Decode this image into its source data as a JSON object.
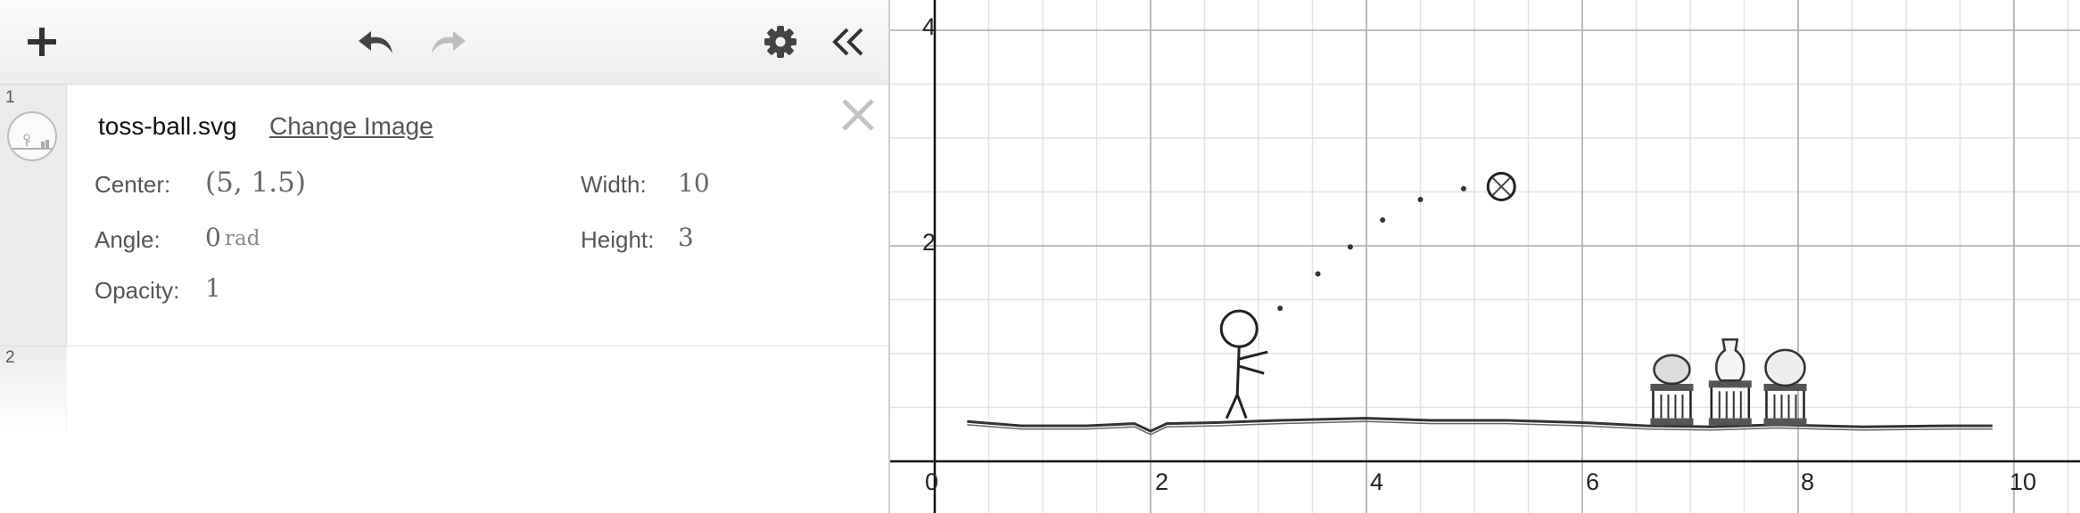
{
  "toolbar": {
    "add_icon": "plus-icon",
    "undo_icon": "undo-icon",
    "redo_icon": "redo-icon",
    "settings_icon": "gear-icon",
    "collapse_icon": "double-chevron-left-icon"
  },
  "expressions": [
    {
      "index": "1",
      "type": "image",
      "filename": "toss-ball.svg",
      "change_image_label": "Change Image",
      "center_label": "Center:",
      "center_value": "(5, 1.5)",
      "width_label": "Width:",
      "width_value": "10",
      "angle_label": "Angle:",
      "angle_value": "0",
      "angle_unit": "rad",
      "height_label": "Height:",
      "height_value": "3",
      "opacity_label": "Opacity:",
      "opacity_value": "1"
    },
    {
      "index": "2",
      "type": "empty"
    }
  ],
  "graph": {
    "x_ticks": [
      "0",
      "2",
      "4",
      "6",
      "8",
      "10"
    ],
    "y_ticks": [
      "2",
      "4"
    ],
    "image": {
      "name": "toss-ball.svg",
      "ball_arc_x": [
        3.2,
        3.55,
        3.85,
        4.15,
        4.5,
        4.9
      ],
      "ball_arc_y": [
        1.42,
        1.74,
        1.99,
        2.24,
        2.43,
        2.53
      ],
      "ball_center": [
        5.25,
        2.55
      ]
    }
  }
}
